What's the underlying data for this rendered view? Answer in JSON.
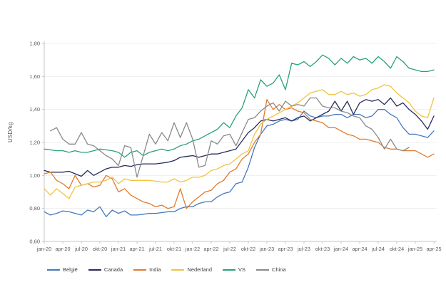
{
  "chart_data": {
    "type": "line",
    "title": "",
    "ylabel": "USD/kg",
    "ylim": [
      0.6,
      1.8
    ],
    "ytick_values": [
      0.6,
      0.8,
      1.0,
      1.2,
      1.4,
      1.6,
      1.8
    ],
    "ytick_labels": [
      "0,60",
      "0,80",
      "1,00",
      "1,20",
      "1,40",
      "1,60",
      "1,80"
    ],
    "n_points": 64,
    "xtick_every": 3,
    "xtick_labels": [
      "jan-20",
      "apr-20",
      "jul-20",
      "okt-20",
      "jan-21",
      "apr-21",
      "jul-21",
      "okt-21",
      "jan-22",
      "apr-22",
      "jul-22",
      "okt-22",
      "jan-23",
      "apr-23",
      "jul-23",
      "okt-23",
      "jan-24",
      "apr-24",
      "jul-24",
      "okt-24",
      "jan-25",
      "apr-25"
    ],
    "grid": "horizontal",
    "legend_position": "bottom",
    "axis_color": "#c6c6c6",
    "grid_color": "#efefef",
    "tick_text_color": "#595959",
    "series": [
      {
        "name": "België",
        "color": "#4379bd",
        "values": [
          0.78,
          0.76,
          0.77,
          0.785,
          0.78,
          0.77,
          0.76,
          0.79,
          0.78,
          0.81,
          0.75,
          0.79,
          0.77,
          0.785,
          0.76,
          0.76,
          0.765,
          0.77,
          0.77,
          0.775,
          0.78,
          0.78,
          0.8,
          0.81,
          0.81,
          0.83,
          0.84,
          0.84,
          0.87,
          0.89,
          0.9,
          0.95,
          0.96,
          1.05,
          1.17,
          1.25,
          1.3,
          1.31,
          1.33,
          1.34,
          1.33,
          1.34,
          1.39,
          1.36,
          1.35,
          1.36,
          1.36,
          1.37,
          1.37,
          1.35,
          1.37,
          1.37,
          1.35,
          1.36,
          1.4,
          1.4,
          1.37,
          1.35,
          1.29,
          1.25,
          1.25,
          1.24,
          1.23,
          1.27
        ]
      },
      {
        "name": "Canada",
        "color": "#252b5e",
        "values": [
          1.03,
          1.02,
          1.02,
          1.02,
          1.025,
          1.01,
          0.995,
          1.03,
          1.0,
          1.02,
          1.04,
          1.05,
          1.05,
          1.06,
          1.055,
          1.065,
          1.07,
          1.07,
          1.07,
          1.075,
          1.08,
          1.09,
          1.11,
          1.115,
          1.12,
          1.11,
          1.12,
          1.13,
          1.13,
          1.14,
          1.15,
          1.16,
          1.21,
          1.26,
          1.29,
          1.33,
          1.34,
          1.33,
          1.34,
          1.35,
          1.33,
          1.35,
          1.36,
          1.33,
          1.35,
          1.37,
          1.39,
          1.45,
          1.39,
          1.45,
          1.37,
          1.44,
          1.46,
          1.45,
          1.46,
          1.43,
          1.47,
          1.42,
          1.44,
          1.4,
          1.37,
          1.33,
          1.28,
          1.36
        ]
      },
      {
        "name": "India",
        "color": "#e07b2f",
        "values": [
          1.01,
          1.02,
          0.97,
          0.95,
          0.92,
          1.0,
          0.94,
          0.95,
          0.93,
          0.94,
          1.0,
          0.98,
          0.9,
          0.92,
          0.88,
          0.86,
          0.84,
          0.83,
          0.81,
          0.82,
          0.8,
          0.81,
          0.92,
          0.8,
          0.84,
          0.87,
          0.9,
          0.91,
          0.95,
          0.97,
          1.02,
          1.04,
          1.1,
          1.13,
          1.2,
          1.25,
          1.46,
          1.4,
          1.43,
          1.4,
          1.41,
          1.39,
          1.38,
          1.34,
          1.33,
          1.32,
          1.29,
          1.29,
          1.27,
          1.25,
          1.24,
          1.22,
          1.22,
          1.21,
          1.2,
          1.17,
          1.16,
          1.16,
          1.15,
          1.15,
          1.15,
          1.13,
          1.11,
          1.13
        ]
      },
      {
        "name": "Nederland",
        "color": "#f0c342",
        "values": [
          0.92,
          0.88,
          0.92,
          0.89,
          0.86,
          0.93,
          0.94,
          0.95,
          0.96,
          0.96,
          0.97,
          0.99,
          0.95,
          0.98,
          0.97,
          0.97,
          0.97,
          0.97,
          0.965,
          0.96,
          0.96,
          0.98,
          0.96,
          0.97,
          0.99,
          0.99,
          1.0,
          1.03,
          1.04,
          1.06,
          1.07,
          1.1,
          1.13,
          1.15,
          1.25,
          1.31,
          1.34,
          1.36,
          1.38,
          1.4,
          1.42,
          1.44,
          1.47,
          1.5,
          1.51,
          1.52,
          1.49,
          1.49,
          1.51,
          1.49,
          1.5,
          1.48,
          1.49,
          1.52,
          1.53,
          1.55,
          1.54,
          1.5,
          1.47,
          1.44,
          1.39,
          1.36,
          1.35,
          1.47
        ]
      },
      {
        "name": "VS",
        "color": "#27a17e",
        "values": [
          1.16,
          1.155,
          1.15,
          1.15,
          1.14,
          1.15,
          1.14,
          1.14,
          1.15,
          1.16,
          1.155,
          1.15,
          1.14,
          1.11,
          1.14,
          1.15,
          1.12,
          1.14,
          1.15,
          1.16,
          1.15,
          1.16,
          1.18,
          1.19,
          1.21,
          1.22,
          1.24,
          1.26,
          1.28,
          1.32,
          1.29,
          1.36,
          1.41,
          1.52,
          1.47,
          1.58,
          1.54,
          1.56,
          1.61,
          1.52,
          1.68,
          1.67,
          1.69,
          1.66,
          1.69,
          1.73,
          1.71,
          1.67,
          1.71,
          1.68,
          1.72,
          1.7,
          1.71,
          1.68,
          1.72,
          1.69,
          1.65,
          1.72,
          1.69,
          1.65,
          1.64,
          1.63,
          1.63,
          1.64
        ]
      },
      {
        "name": "China",
        "color": "#898989",
        "values": [
          null,
          1.27,
          1.29,
          1.22,
          1.19,
          1.19,
          1.26,
          1.19,
          1.18,
          1.15,
          1.12,
          1.1,
          1.06,
          1.18,
          1.17,
          0.99,
          1.12,
          1.25,
          1.19,
          1.26,
          1.21,
          1.32,
          1.23,
          1.32,
          1.22,
          1.05,
          1.06,
          1.21,
          1.19,
          1.24,
          1.25,
          1.18,
          1.26,
          1.34,
          1.35,
          1.39,
          1.42,
          1.44,
          1.39,
          1.45,
          1.42,
          1.43,
          1.42,
          1.47,
          1.47,
          1.42,
          1.41,
          1.41,
          1.39,
          1.38,
          1.36,
          1.35,
          1.3,
          1.28,
          1.23,
          1.16,
          1.22,
          1.16,
          1.15,
          1.17,
          null,
          null,
          null,
          null
        ]
      }
    ]
  }
}
